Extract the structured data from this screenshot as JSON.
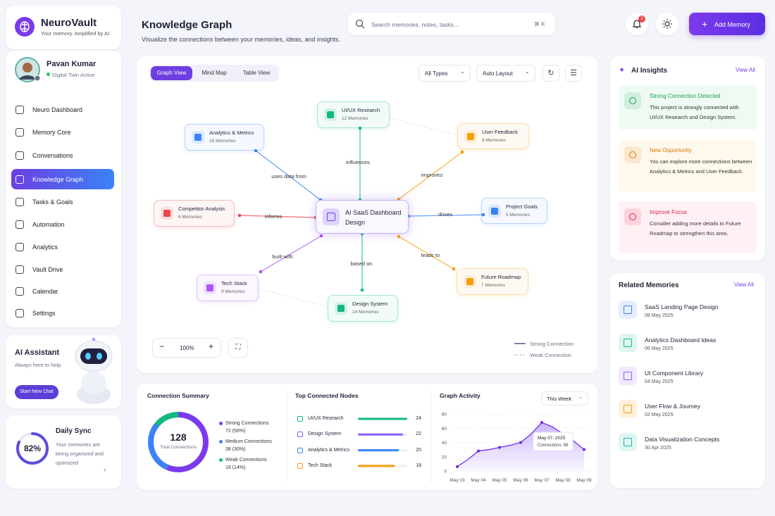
{
  "brand": {
    "name": "NeuroVault",
    "tagline": "Your memory. Amplified by AI."
  },
  "user": {
    "name": "Pavan Kumar",
    "status": "Digital Twin Active"
  },
  "nav": [
    "Neuro Dashboard",
    "Memory Core",
    "Conversations",
    "Knowledge Graph",
    "Tasks & Goals",
    "Automation",
    "Analytics",
    "Vault Drive",
    "Calendar",
    "Settings"
  ],
  "assistant": {
    "title": "AI Assistant",
    "subtitle": "Always here to help",
    "button": "Start New Chat"
  },
  "sync": {
    "title": "Daily Sync",
    "progress": 82,
    "progress_label": "82%",
    "text": "Your memories are being organized and optimized"
  },
  "header": {
    "title": "Knowledge Graph",
    "subtitle": "Visualize the connections between your memories, ideas, and insights.",
    "search": "Search memories, notes, tasks...",
    "shortcut": "⌘ K",
    "notifications": 3,
    "button": "Add Memory"
  },
  "graph": {
    "tabs": [
      "Graph View",
      "Mind Map",
      "Table View"
    ],
    "filters": [
      "All Types",
      "Auto Layout"
    ],
    "center": "AI SaaS Dashboard Design",
    "nodes": [
      {
        "title": "UI/UX Research",
        "count": "12 Memories",
        "relation": "influences"
      },
      {
        "title": "Analytics & Metrics",
        "count": "18 Memories",
        "relation": "uses data from"
      },
      {
        "title": "User Feedback",
        "count": "8 Memories",
        "relation": "improves"
      },
      {
        "title": "Competitor Analysis",
        "count": "6 Memories",
        "relation": "informs"
      },
      {
        "title": "Project Goals",
        "count": "5 Memories",
        "relation": "drives"
      },
      {
        "title": "Tech Stack",
        "count": "9 Memories",
        "relation": "built with"
      },
      {
        "title": "Design System",
        "count": "14 Memories",
        "relation": "based on"
      },
      {
        "title": "Future Roadmap",
        "count": "7 Memories",
        "relation": "leads to"
      }
    ],
    "zoom": "100%",
    "legend": [
      "Strong Connection",
      "Weak Connection"
    ]
  },
  "insights": {
    "title": "AI Insights",
    "action": "View All",
    "cards": [
      {
        "title": "Strong Connection Detected",
        "text": "This project is strongly connected with UI/UX Research and Design System."
      },
      {
        "title": "New Opportunity",
        "text": "You can explore more connections between Analytics & Metrics and User Feedback."
      },
      {
        "title": "Improve Focus",
        "text": "Consider adding more details to Future Roadmap to strengthen this area."
      }
    ]
  },
  "related": {
    "title": "Related Memories",
    "action": "View All",
    "items": [
      {
        "title": "SaaS Landing Page Design",
        "date": "08 May 2025"
      },
      {
        "title": "Analytics Dashboard Ideas",
        "date": "06 May 2025"
      },
      {
        "title": "UI Component Library",
        "date": "04 May 2025"
      },
      {
        "title": "User Flow & Journey",
        "date": "02 May 2025"
      },
      {
        "title": "Data Visualization Concepts",
        "date": "30 Apr 2025"
      }
    ]
  },
  "summary": {
    "title": "Connection Summary",
    "total": 128,
    "total_label": "Total Connections",
    "items": [
      {
        "name": "Strong Connections",
        "value": 72,
        "value_label": "72 (56%)"
      },
      {
        "name": "Medium Connections",
        "value": 38,
        "value_label": "38 (30%)"
      },
      {
        "name": "Weak Connections",
        "value": 18,
        "value_label": "18 (14%)"
      }
    ]
  },
  "top_nodes": {
    "title": "Top Connected Nodes",
    "categories": [
      "UI/UX Research",
      "Design System",
      "Analytics & Metrics",
      "Tech Stack"
    ],
    "values": [
      24,
      22,
      20,
      18
    ]
  },
  "activity": {
    "title": "Graph Activity",
    "period": "This Week",
    "type": "area",
    "categories": [
      "May 03",
      null,
      "May 04",
      null,
      "May 05",
      null,
      "May 06",
      null,
      "May 07",
      null,
      "May 08",
      null,
      "May 09"
    ],
    "values": [
      6,
      16,
      28,
      30,
      33,
      36,
      40,
      52,
      68,
      62,
      52,
      42,
      30
    ],
    "ylim": [
      0,
      80
    ],
    "yticks": [
      0,
      20,
      40,
      60,
      80
    ],
    "tooltip": {
      "date": "May 07, 2025",
      "label": "Connections: 68"
    }
  }
}
